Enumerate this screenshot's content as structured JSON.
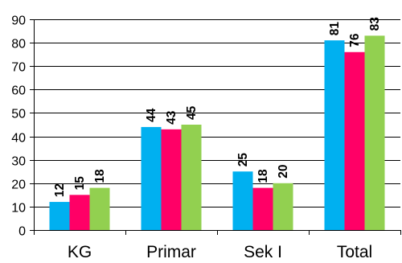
{
  "chart_data": {
    "type": "bar",
    "title": "",
    "xlabel": "",
    "ylabel": "",
    "categories": [
      "KG",
      "Primar",
      "Sek I",
      "Total"
    ],
    "series": [
      {
        "values": [
          12,
          44,
          25,
          81
        ],
        "color": "#00B0F0"
      },
      {
        "values": [
          15,
          43,
          18,
          76
        ],
        "color": "#FF0066"
      },
      {
        "values": [
          18,
          45,
          20,
          83
        ],
        "color": "#92D050"
      }
    ],
    "ylim": [
      0,
      90
    ],
    "yticks": [
      0,
      10,
      20,
      30,
      40,
      50,
      60,
      70,
      80,
      90
    ],
    "grid": true,
    "data_labels": true,
    "legend": "none"
  }
}
